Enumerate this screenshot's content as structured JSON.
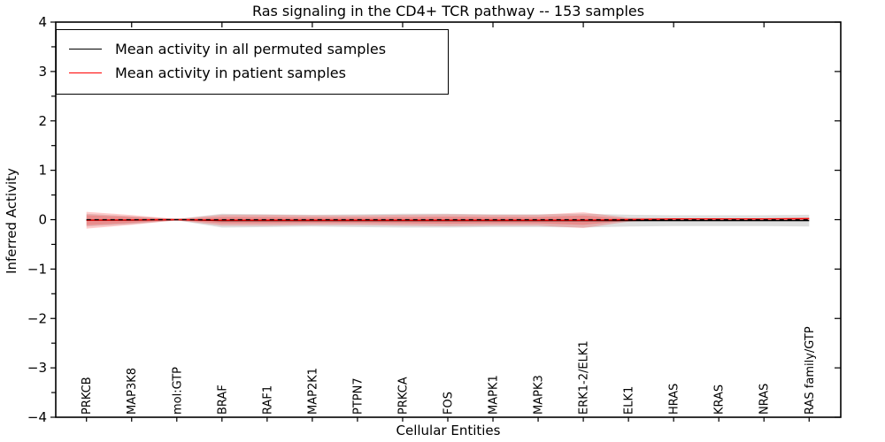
{
  "title": "Ras signaling in the CD4+ TCR pathway -- 153 samples",
  "legend": {
    "items": [
      {
        "label": "Mean activity in all permuted samples",
        "color": "#000000"
      },
      {
        "label": "Mean activity in patient samples",
        "color": "#ff0000"
      }
    ]
  },
  "chart_data": {
    "type": "line",
    "title": "Ras signaling in the CD4+ TCR pathway -- 153 samples",
    "xlabel": "Cellular Entities",
    "ylabel": "Inferred Activity",
    "ylim": [
      -4,
      4
    ],
    "ytick_step": 1,
    "grid": false,
    "legend_position": "upper left",
    "categories": [
      "PRKCB",
      "MAP3K8",
      "mol:GTP",
      "BRAF",
      "RAF1",
      "MAP2K1",
      "PTPN7",
      "PRKCA",
      "FOS",
      "MAPK1",
      "MAPK3",
      "ERK1-2/ELK1",
      "ELK1",
      "HRAS",
      "KRAS",
      "NRAS",
      "RAS family/GTP"
    ],
    "series": [
      {
        "name": "Mean activity in all permuted samples",
        "color": "#000000",
        "values": [
          -0.01,
          -0.01,
          0.0,
          -0.02,
          -0.02,
          -0.02,
          -0.02,
          -0.02,
          -0.02,
          -0.02,
          -0.02,
          -0.02,
          -0.02,
          -0.02,
          -0.02,
          -0.02,
          -0.02
        ]
      },
      {
        "name": "Mean activity in patient samples",
        "color": "#ff0000",
        "values": [
          -0.01,
          -0.005,
          0.0,
          -0.01,
          -0.01,
          -0.01,
          -0.01,
          -0.01,
          -0.01,
          -0.01,
          -0.01,
          -0.01,
          0.0,
          0.015,
          0.015,
          0.015,
          0.02
        ]
      }
    ],
    "bands": [
      {
        "name": "permuted-std-band",
        "series": 0,
        "color": "rgba(0,0,0,0.13)",
        "half_widths": [
          0.13,
          0.08,
          0.015,
          0.14,
          0.13,
          0.12,
          0.13,
          0.14,
          0.14,
          0.13,
          0.13,
          0.14,
          0.12,
          0.11,
          0.11,
          0.11,
          0.12
        ]
      },
      {
        "name": "patient-std-band",
        "series": 1,
        "color": "rgba(255,0,0,0.20)",
        "half_widths": [
          0.17,
          0.1,
          0.012,
          0.11,
          0.11,
          0.1,
          0.1,
          0.11,
          0.12,
          0.11,
          0.11,
          0.16,
          0.04,
          0.015,
          0.015,
          0.015,
          0.025
        ]
      }
    ],
    "zero_line": {
      "value": 0,
      "style": "dashed",
      "color": "#000000"
    }
  }
}
